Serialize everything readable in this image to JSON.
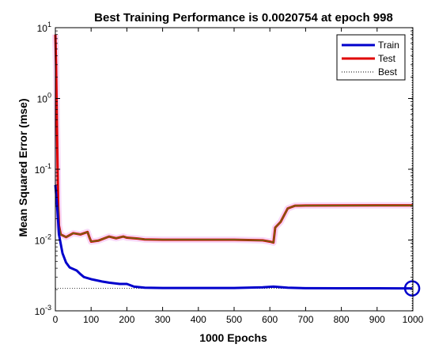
{
  "chart_data": {
    "type": "line",
    "title": "Best Training Performance is 0.0020754 at epoch 998",
    "xlabel": "1000 Epochs",
    "ylabel": "Mean Squared Error  (mse)",
    "xlim": [
      0,
      1000
    ],
    "ylim": [
      0.001,
      10
    ],
    "yscale": "log",
    "x_ticks": [
      0,
      100,
      200,
      300,
      400,
      500,
      600,
      700,
      800,
      900,
      1000
    ],
    "y_ticks": [
      {
        "value": 0.001,
        "base": "10",
        "exp": "-3"
      },
      {
        "value": 0.01,
        "base": "10",
        "exp": "-2"
      },
      {
        "value": 0.1,
        "base": "10",
        "exp": "-1"
      },
      {
        "value": 1,
        "base": "10",
        "exp": "0"
      },
      {
        "value": 10,
        "base": "10",
        "exp": "1"
      }
    ],
    "grid": false,
    "legend_position": "top-right",
    "series": [
      {
        "name": "Train",
        "color": "#0000cc",
        "points": [
          [
            0,
            0.06
          ],
          [
            5,
            0.03
          ],
          [
            10,
            0.012
          ],
          [
            20,
            0.0065
          ],
          [
            30,
            0.0048
          ],
          [
            40,
            0.0041
          ],
          [
            50,
            0.0039
          ],
          [
            60,
            0.0037
          ],
          [
            70,
            0.0033
          ],
          [
            80,
            0.003
          ],
          [
            100,
            0.0028
          ],
          [
            130,
            0.0026
          ],
          [
            150,
            0.0025
          ],
          [
            180,
            0.0024
          ],
          [
            200,
            0.0024
          ],
          [
            220,
            0.0022
          ],
          [
            250,
            0.00212
          ],
          [
            300,
            0.0021
          ],
          [
            400,
            0.0021
          ],
          [
            500,
            0.0021
          ],
          [
            580,
            0.00215
          ],
          [
            610,
            0.0022
          ],
          [
            650,
            0.00212
          ],
          [
            700,
            0.00209
          ],
          [
            800,
            0.00208
          ],
          [
            900,
            0.00208
          ],
          [
            998,
            0.0020754
          ]
        ]
      },
      {
        "name": "Test",
        "color": "#e00000",
        "points": [
          [
            0,
            8
          ],
          [
            2,
            3
          ],
          [
            4,
            0.6
          ],
          [
            6,
            0.12
          ],
          [
            8,
            0.03
          ],
          [
            10,
            0.016
          ],
          [
            15,
            0.012
          ],
          [
            30,
            0.011
          ],
          [
            50,
            0.0125
          ],
          [
            70,
            0.012
          ],
          [
            90,
            0.013
          ],
          [
            95,
            0.011
          ],
          [
            100,
            0.0095
          ],
          [
            120,
            0.0098
          ],
          [
            150,
            0.0112
          ],
          [
            170,
            0.0106
          ],
          [
            190,
            0.0112
          ],
          [
            200,
            0.0108
          ],
          [
            230,
            0.0105
          ],
          [
            250,
            0.0102
          ],
          [
            300,
            0.0101
          ],
          [
            400,
            0.0101
          ],
          [
            500,
            0.0101
          ],
          [
            580,
            0.0099
          ],
          [
            600,
            0.0095
          ],
          [
            610,
            0.0092
          ],
          [
            615,
            0.015
          ],
          [
            630,
            0.018
          ],
          [
            650,
            0.028
          ],
          [
            670,
            0.0305
          ],
          [
            700,
            0.0307
          ],
          [
            800,
            0.0308
          ],
          [
            900,
            0.0309
          ],
          [
            1000,
            0.0309
          ]
        ]
      },
      {
        "name": "Best",
        "color": "#000000"
      }
    ],
    "best_epoch": 998,
    "best_value": 0.0020754
  }
}
